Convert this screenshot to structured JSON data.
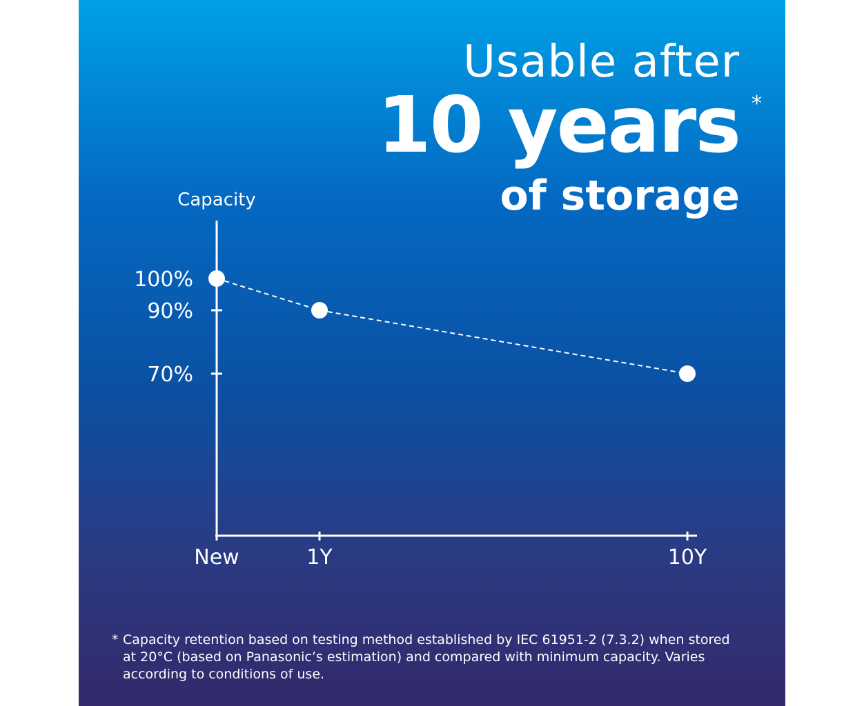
{
  "headline": {
    "line1": "Usable after",
    "line2": "10 years",
    "asterisk": "*",
    "line3": "of storage"
  },
  "chart_data": {
    "type": "line",
    "ylabel": "Capacity",
    "xlabel": "",
    "x_categories": [
      "New",
      "1Y",
      "10Y"
    ],
    "x_years": [
      0,
      1,
      10
    ],
    "values": [
      100,
      90,
      70
    ],
    "y_ticks": [
      100,
      90,
      70
    ],
    "y_tick_labels": [
      "100%",
      "90%",
      "70%"
    ],
    "x_tick_labels": [
      "New",
      "1Y",
      "10Y"
    ],
    "line_style": "dashed",
    "grid": false,
    "legend": "none"
  },
  "footnote": {
    "mark": "*",
    "text": "Capacity retention based on testing method established by IEC 61951-2 (7.3.2) when stored at 20°C (based on Panasonic’s estimation) and compared with minimum capacity. Varies according to conditions of use."
  }
}
